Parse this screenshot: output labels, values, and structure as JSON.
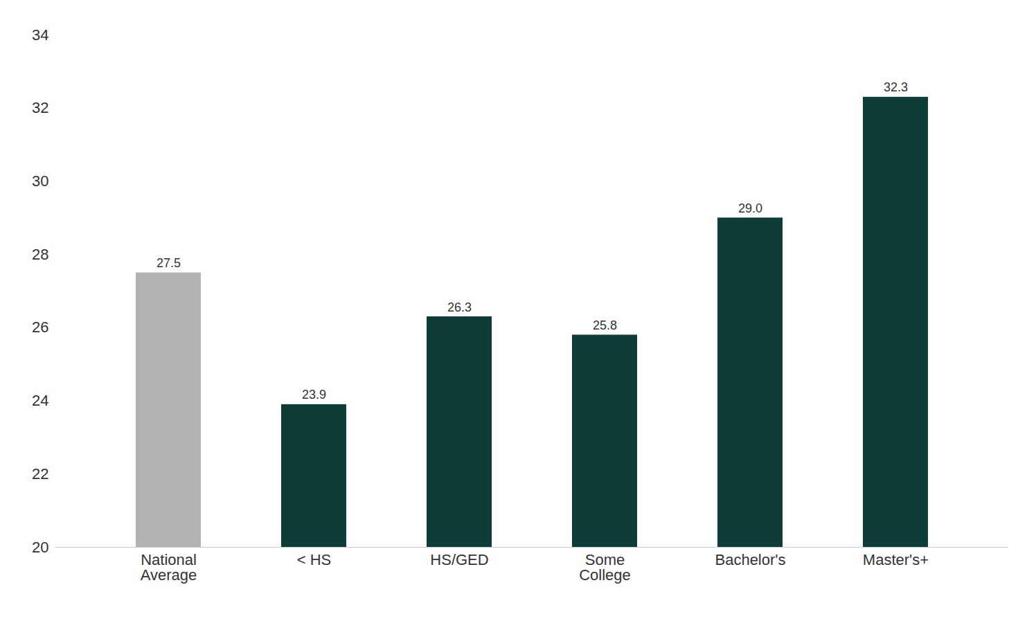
{
  "chart_data": {
    "type": "bar",
    "categories": [
      "National\nAverage",
      "< HS",
      "HS/GED",
      "Some\nCollege",
      "Bachelor's",
      "Master's+"
    ],
    "values": [
      27.5,
      23.9,
      26.3,
      25.8,
      29.0,
      32.3
    ],
    "value_labels": [
      "27.5",
      "23.9",
      "26.3",
      "25.8",
      "29.0",
      "32.3"
    ],
    "colors": [
      "#b2b2b2",
      "#0d3d36",
      "#0d3d36",
      "#0d3d36",
      "#0d3d36",
      "#0d3d36"
    ],
    "ylim": [
      20,
      34
    ],
    "yticks": [
      20,
      22,
      24,
      26,
      28,
      30,
      32,
      34
    ],
    "grid": false,
    "data_labels": true
  }
}
